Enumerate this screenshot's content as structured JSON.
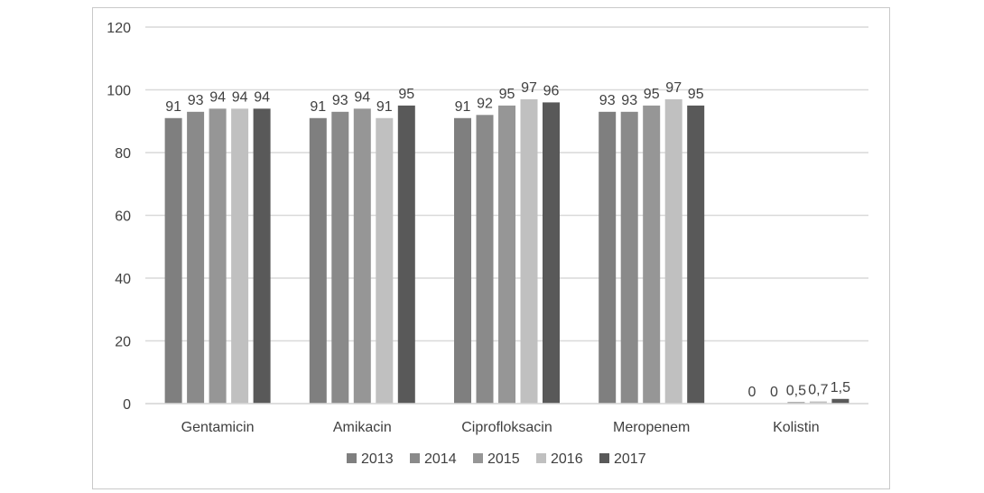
{
  "chart_data": {
    "type": "bar",
    "title": "",
    "xlabel": "",
    "ylabel": "",
    "ylim": [
      0,
      120
    ],
    "yticks": [
      0,
      20,
      40,
      60,
      80,
      100,
      120
    ],
    "grid": true,
    "legend_position": "bottom",
    "categories": [
      "Gentamicin",
      "Amikacin",
      "Ciprofloksacin",
      "Meropenem",
      "Kolistin"
    ],
    "series": [
      {
        "name": "2013",
        "color": "#7f7f7f",
        "values": [
          91,
          91,
          91,
          93,
          0
        ],
        "labels": [
          "91",
          "91",
          "91",
          "93",
          "0"
        ]
      },
      {
        "name": "2014",
        "color": "#8a8a8a",
        "values": [
          93,
          93,
          92,
          93,
          0
        ],
        "labels": [
          "93",
          "93",
          "92",
          "93",
          "0"
        ]
      },
      {
        "name": "2015",
        "color": "#969696",
        "values": [
          94,
          94,
          95,
          95,
          0.5
        ],
        "labels": [
          "94",
          "94",
          "95",
          "95",
          "0,5"
        ]
      },
      {
        "name": "2016",
        "color": "#c0c0c0",
        "values": [
          94,
          91,
          97,
          97,
          0.7
        ],
        "labels": [
          "94",
          "91",
          "97",
          "97",
          "0,7"
        ]
      },
      {
        "name": "2017",
        "color": "#595959",
        "values": [
          94,
          95,
          96,
          95,
          1.5
        ],
        "labels": [
          "94",
          "95",
          "96",
          "95",
          "1,5"
        ]
      }
    ]
  }
}
